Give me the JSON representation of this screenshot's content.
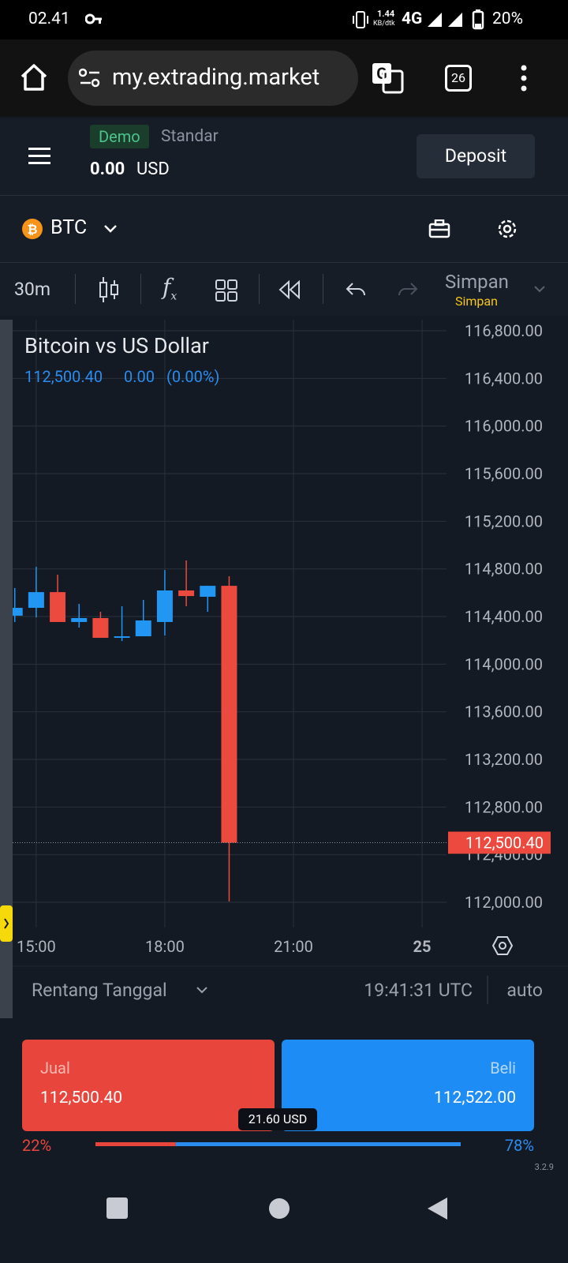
{
  "status_bar": {
    "time": "02.41",
    "speed": "1.44",
    "speed_unit": "KB/dtk",
    "network": "4G",
    "battery": "20%"
  },
  "browser": {
    "url": "my.extrading.market",
    "tabs": "26"
  },
  "header": {
    "account_type": "Demo",
    "account_name": "Standar",
    "balance": "0.00",
    "currency": "USD",
    "deposit_button": "Deposit"
  },
  "symbol_bar": {
    "symbol": "BTC"
  },
  "toolbar": {
    "interval": "30m",
    "save": "Simpan",
    "save_status": "Simpan"
  },
  "chart_data": {
    "type": "candlestick",
    "title": "Bitcoin vs US Dollar",
    "change": "0.00",
    "change_pct": "(0.00%)",
    "last_price": {
      "value": 112500.4,
      "label": "112,500.40"
    },
    "up_color": "#2196f3",
    "down_color": "#ec4a3f",
    "x": [
      14.5,
      15,
      15.5,
      16,
      16.5,
      17,
      17.5,
      18,
      18.5,
      19,
      19.5
    ],
    "open": [
      114407,
      114473,
      114605,
      114354,
      114387,
      114221,
      114234,
      114354,
      114619,
      114566,
      114658
    ],
    "high": [
      114639,
      114818,
      114751,
      114506,
      114440,
      114486,
      114539,
      114791,
      114871,
      114658,
      114738
    ],
    "low": [
      114354,
      114393,
      114354,
      114307,
      114221,
      114194,
      114234,
      114241,
      114486,
      114440,
      112008
    ],
    "close": [
      114473,
      114605,
      114354,
      114387,
      114221,
      114234,
      114367,
      114619,
      114572,
      114658,
      112500.4
    ],
    "xlim": [
      14.45,
      24.57
    ],
    "xticks": [
      {
        "value": 15,
        "label": "15:00"
      },
      {
        "value": 18,
        "label": "18:00"
      },
      {
        "value": 21,
        "label": "21:00"
      },
      {
        "value": 24,
        "label": "25"
      }
    ],
    "ylim": [
      111788,
      116893
    ],
    "yticks": [
      {
        "value": 112000,
        "label": "112,000.00"
      },
      {
        "value": 112400,
        "label": "112,400.00"
      },
      {
        "value": 112800,
        "label": "112,800.00"
      },
      {
        "value": 113200,
        "label": "113,200.00"
      },
      {
        "value": 113600,
        "label": "113,600.00"
      },
      {
        "value": 114000,
        "label": "114,000.00"
      },
      {
        "value": 114400,
        "label": "114,400.00"
      },
      {
        "value": 114800,
        "label": "114,800.00"
      },
      {
        "value": 115200,
        "label": "115,200.00"
      },
      {
        "value": 115600,
        "label": "115,600.00"
      },
      {
        "value": 116000,
        "label": "116,000.00"
      },
      {
        "value": 116400,
        "label": "116,400.00"
      },
      {
        "value": 116800,
        "label": "116,800.00"
      }
    ],
    "grid": true
  },
  "chart_footer": {
    "range": "Rentang Tanggal",
    "clock": "19:41:31 UTC",
    "scale": "auto"
  },
  "trade": {
    "sell_label": "Jual",
    "sell_price": "112,500.40",
    "buy_label": "Beli",
    "buy_price": "112,522.00",
    "spread": "21.60 USD",
    "sell_share": {
      "value": 22,
      "label": "22%"
    },
    "buy_share": {
      "value": 78,
      "label": "78%"
    },
    "version": "3.2.9"
  }
}
